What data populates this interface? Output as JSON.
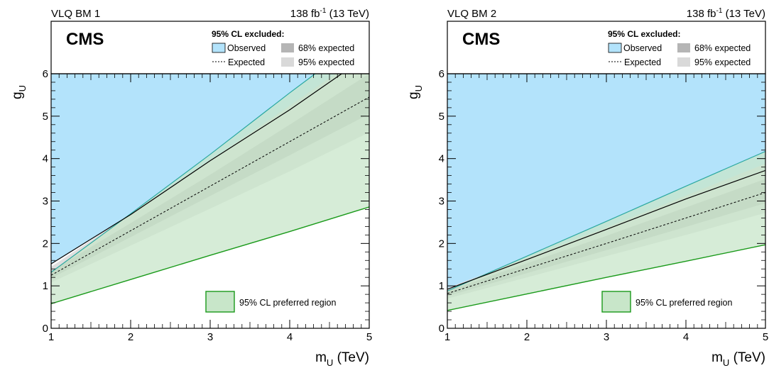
{
  "chart_data": [
    {
      "type": "area",
      "scenario_label": "VLQ BM 1",
      "lumi_label": {
        "lumi": "138 fb",
        "lumi_exp": "-1",
        "energy": " (13 TeV)"
      },
      "experiment": "CMS",
      "xlabel": "m",
      "xlabel_sub": "U",
      "xlabel_unit": " (TeV)",
      "ylabel": "g",
      "ylabel_sub": "U",
      "xlim": [
        1,
        5
      ],
      "ylim": [
        0,
        6
      ],
      "xticks": [
        "1",
        "2",
        "3",
        "4",
        "5"
      ],
      "yticks": [
        "0",
        "1",
        "2",
        "3",
        "4",
        "5",
        "6"
      ],
      "legend": {
        "title": "95% CL excluded:",
        "observed": "Observed",
        "expected": "Expected",
        "band68": "68% expected",
        "band95": "95% expected",
        "preferred": "95% CL preferred region"
      },
      "x": [
        1,
        2,
        3,
        4,
        5
      ],
      "series": [
        {
          "name": "Observed",
          "values": [
            1.52,
            2.68,
            3.95,
            5.15,
            6.45
          ]
        },
        {
          "name": "Expected",
          "values": [
            1.25,
            2.3,
            3.35,
            4.4,
            5.45
          ]
        },
        {
          "name": "68% expected",
          "lower": [
            1.18,
            2.15,
            3.12,
            4.08,
            5.05
          ],
          "upper": [
            1.35,
            2.48,
            3.62,
            4.8,
            6.0
          ]
        },
        {
          "name": "95% expected",
          "lower": [
            1.08,
            1.95,
            2.82,
            3.7,
            4.62
          ],
          "upper": [
            1.45,
            2.7,
            3.95,
            5.25,
            6.55
          ]
        },
        {
          "name": "95% CL preferred region",
          "lower": [
            0.58,
            1.15,
            1.72,
            2.28,
            2.86
          ],
          "upper": [
            1.32,
            2.7,
            4.1,
            5.55,
            6.95
          ]
        }
      ]
    },
    {
      "type": "area",
      "scenario_label": "VLQ BM 2",
      "lumi_label": {
        "lumi": "138 fb",
        "lumi_exp": "-1",
        "energy": " (13 TeV)"
      },
      "experiment": "CMS",
      "xlabel": "m",
      "xlabel_sub": "U",
      "xlabel_unit": " (TeV)",
      "ylabel": "g",
      "ylabel_sub": "U",
      "xlim": [
        1,
        5
      ],
      "ylim": [
        0,
        6
      ],
      "xticks": [
        "1",
        "2",
        "3",
        "4",
        "5"
      ],
      "yticks": [
        "0",
        "1",
        "2",
        "3",
        "4",
        "5",
        "6"
      ],
      "legend": {
        "title": "95% CL excluded:",
        "observed": "Observed",
        "expected": "Expected",
        "band68": "68% expected",
        "band95": "95% expected",
        "preferred": "95% CL preferred region"
      },
      "x": [
        1,
        2,
        3,
        4,
        5
      ],
      "series": [
        {
          "name": "Observed",
          "values": [
            0.92,
            1.62,
            2.33,
            3.05,
            3.72
          ]
        },
        {
          "name": "Expected",
          "values": [
            0.82,
            1.41,
            2.0,
            2.6,
            3.2
          ]
        },
        {
          "name": "68% expected",
          "lower": [
            0.76,
            1.3,
            1.84,
            2.39,
            2.95
          ],
          "upper": [
            0.88,
            1.53,
            2.18,
            2.85,
            3.52
          ]
        },
        {
          "name": "95% expected",
          "lower": [
            0.7,
            1.2,
            1.7,
            2.2,
            2.72
          ],
          "upper": [
            0.95,
            1.66,
            2.38,
            3.13,
            3.88
          ]
        },
        {
          "name": "95% CL preferred region",
          "lower": [
            0.42,
            0.81,
            1.2,
            1.58,
            1.97
          ],
          "upper": [
            0.88,
            1.7,
            2.52,
            3.35,
            4.17
          ]
        }
      ]
    }
  ],
  "colors": {
    "observed_fill": "#b3e3fb",
    "band95": "#d9d9d9",
    "band68": "#b5b5b5",
    "preferred_fill": "#c8e6c9",
    "preferred_line": "#1a9a1a",
    "teal_line": "#2aa8a0"
  }
}
